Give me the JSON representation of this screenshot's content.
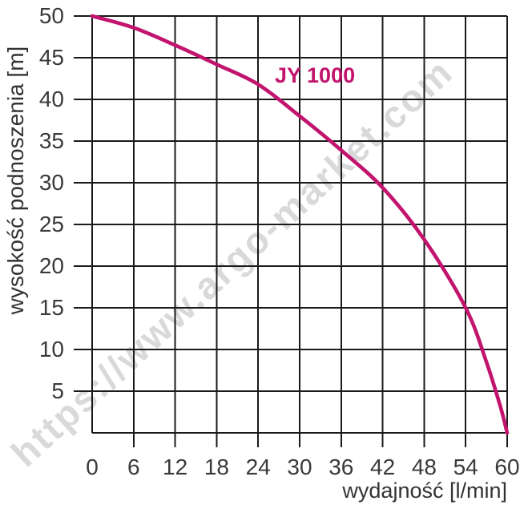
{
  "watermark": "https://www.argo-market.com",
  "curve_label": "JY 1000",
  "chart_data": {
    "type": "line",
    "title": "",
    "xlabel": "wydajność [l/min]",
    "ylabel": "wysokość podnoszenia [m]",
    "xlim": [
      0,
      60
    ],
    "ylim": [
      0,
      50
    ],
    "grid": true,
    "legend_position": "inline-label-on-curve",
    "xtick_values": [
      0,
      6,
      12,
      18,
      24,
      30,
      36,
      42,
      48,
      54,
      60
    ],
    "xtick_labels": [
      "0",
      "6",
      "12",
      "18",
      "24",
      "30",
      "36",
      "42",
      "48",
      "54",
      "60"
    ],
    "ytick_values": [
      50,
      45,
      40,
      35,
      30,
      25,
      20,
      15,
      10,
      5
    ],
    "ytick_labels": [
      "50",
      "45",
      "40",
      "35",
      "30",
      "25",
      "20",
      "15",
      "10",
      "5"
    ],
    "series": [
      {
        "name": "JY 1000",
        "x": [
          0,
          6,
          12,
          18,
          24,
          30,
          36,
          42,
          48,
          54,
          57,
          59,
          60
        ],
        "y": [
          50,
          48.6,
          46.5,
          44.2,
          41.8,
          38.0,
          33.9,
          29.4,
          23.2,
          15.0,
          8.5,
          3.2,
          0
        ]
      }
    ],
    "colors": {
      "curve": "#c2146e",
      "grid": "#1a1a1a",
      "tick_text": "#3a3a3a",
      "title_text": "#333333",
      "watermark": "#d9d9dc",
      "background": "#ffffff"
    }
  }
}
